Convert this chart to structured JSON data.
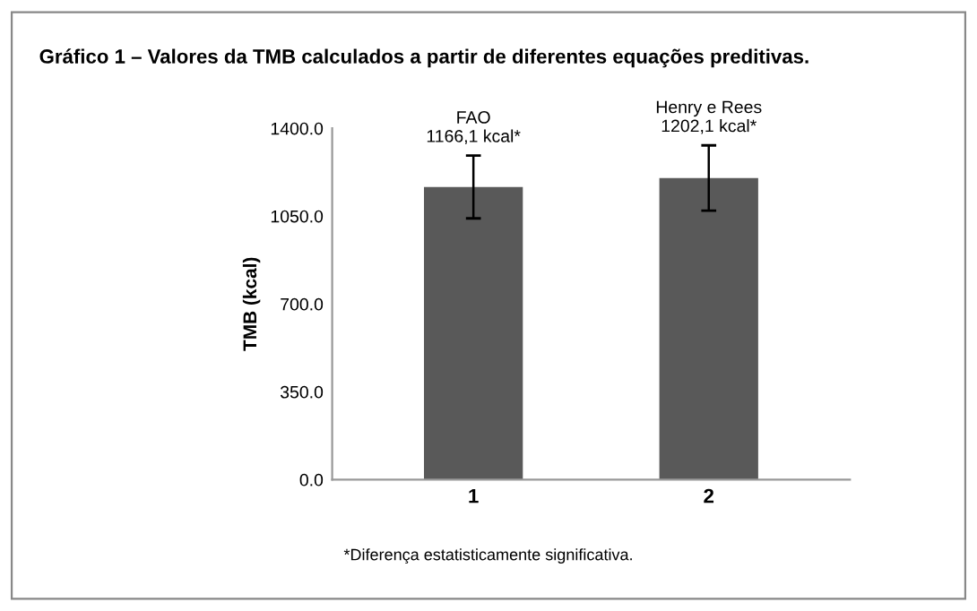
{
  "chart_data": {
    "type": "bar",
    "title": "Gráfico 1 – Valores da TMB calculados a partir de diferentes equações preditivas.",
    "ylabel": "TMB (kcal)",
    "categories": [
      "1",
      "2"
    ],
    "values": [
      1166.1,
      1202.1
    ],
    "errors": [
      125,
      130
    ],
    "value_labels": [
      "FAO\n1166,1 kcal*",
      "Henry e Rees\n1202,1 kcal*"
    ],
    "color": "#595959",
    "ylim": [
      0,
      1400
    ],
    "yticks": [
      {
        "value": 0,
        "label": "0.0"
      },
      {
        "value": 350,
        "label": "350.0"
      },
      {
        "value": 700,
        "label": "700.0"
      },
      {
        "value": 1050,
        "label": "1050.0"
      },
      {
        "value": 1400,
        "label": "1400.0"
      }
    ],
    "annotations": [
      "*Diferença estatisticamente significativa."
    ],
    "grid": false
  }
}
